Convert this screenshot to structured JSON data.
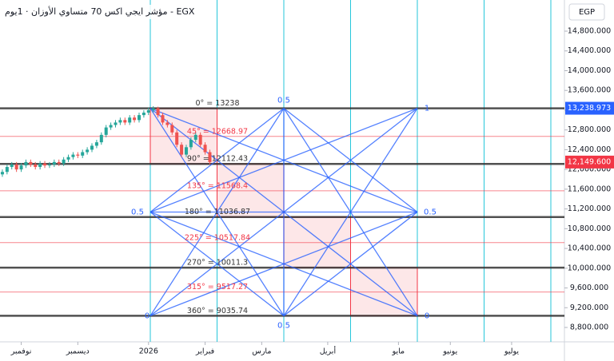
{
  "chart_data": {
    "type": "candlestick",
    "title": "مؤشر ايجي اكس 70 متساوي الأوزان · 1يوم - EGX",
    "currency": "EGP",
    "up_color": "#26a69a",
    "down_color": "#ef5350",
    "open": [
      11900,
      11950,
      12050,
      12100,
      12000,
      12080,
      12150,
      12100,
      12050,
      12120,
      12080,
      12100,
      12150,
      12120,
      12200,
      12250,
      12300,
      12280,
      12350,
      12400,
      12480,
      12550,
      12700,
      12850,
      12900,
      12950,
      13000,
      12950,
      13050,
      13000,
      13100,
      13150,
      13200,
      13238,
      13100,
      12950,
      12900,
      12750,
      12500,
      12300,
      12450,
      12600,
      12700,
      12500,
      12350
    ],
    "close": [
      11950,
      12050,
      12100,
      12000,
      12080,
      12150,
      12100,
      12050,
      12120,
      12080,
      12100,
      12150,
      12120,
      12200,
      12250,
      12300,
      12280,
      12350,
      12400,
      12480,
      12550,
      12700,
      12850,
      12900,
      12950,
      13000,
      12950,
      13050,
      13000,
      13100,
      13150,
      13200,
      13238,
      13100,
      12950,
      12900,
      12750,
      12500,
      12300,
      12450,
      12600,
      12700,
      12500,
      12350,
      12150
    ],
    "high": [
      12000,
      12100,
      12150,
      12150,
      12130,
      12200,
      12200,
      12150,
      12170,
      12170,
      12150,
      12200,
      12200,
      12250,
      12300,
      12350,
      12350,
      12400,
      12450,
      12530,
      12600,
      12750,
      12900,
      12950,
      13000,
      13050,
      13050,
      13100,
      13100,
      13150,
      13200,
      13250,
      13280,
      13270,
      13150,
      13000,
      12950,
      12800,
      12550,
      12500,
      12650,
      12750,
      12750,
      12550,
      12400
    ],
    "low": [
      11850,
      11900,
      12000,
      11950,
      11950,
      12030,
      12050,
      12000,
      12000,
      12030,
      12030,
      12050,
      12070,
      12070,
      12150,
      12200,
      12230,
      12230,
      12300,
      12350,
      12430,
      12500,
      12650,
      12800,
      12850,
      12900,
      12900,
      12900,
      12950,
      12950,
      13050,
      13100,
      13150,
      13050,
      12900,
      12850,
      12700,
      12450,
      12250,
      12250,
      12400,
      12550,
      12450,
      12300,
      12100
    ],
    "xlim": [
      -0.5,
      119.2
    ],
    "xticks": [
      {
        "value": 4,
        "label": "نوفمبر"
      },
      {
        "value": 16,
        "label": "ديسمبر"
      },
      {
        "value": 31,
        "label": "2026"
      },
      {
        "value": 43,
        "label": "فبراير"
      },
      {
        "value": 55,
        "label": "مارس"
      },
      {
        "value": 69,
        "label": "أبريل"
      },
      {
        "value": 84,
        "label": "مايو"
      },
      {
        "value": 95,
        "label": "يونيو"
      },
      {
        "value": 108,
        "label": "يوليو"
      }
    ],
    "ylim": [
      8509,
      15431
    ],
    "yticks": [
      {
        "value": 14800,
        "label": "14,800.000"
      },
      {
        "value": 14400,
        "label": "14,400.000"
      },
      {
        "value": 14000,
        "label": "14,000.000"
      },
      {
        "value": 13600,
        "label": "13,600.000"
      },
      {
        "value": 13200,
        "label": "13,200.000"
      },
      {
        "value": 12800,
        "label": "12,800.000"
      },
      {
        "value": 12400,
        "label": "12,400.000"
      },
      {
        "value": 12000,
        "label": "12,000.000"
      },
      {
        "value": 11600,
        "label": "11,600.000"
      },
      {
        "value": 11200,
        "label": "11,200.000"
      },
      {
        "value": 10800,
        "label": "10,800.000"
      },
      {
        "value": 10400,
        "label": "10,400.000"
      },
      {
        "value": 10000,
        "label": "10,000.000"
      },
      {
        "value": 9600,
        "label": "9,600.000"
      },
      {
        "value": 9200,
        "label": "9,200.000"
      },
      {
        "value": 8800,
        "label": "8,800.000"
      }
    ],
    "price_tags": [
      {
        "value": 13238.973,
        "label": "13,238.973",
        "color": "#2962ff"
      },
      {
        "value": 12149.6,
        "label": "12,149.600",
        "color": "#f23645"
      }
    ],
    "gann_levels": [
      {
        "value": 13238,
        "label": "0° = 13238",
        "color": "#333333",
        "major": true
      },
      {
        "value": 12668.97,
        "label": "45° = 12668.97",
        "color": "#f23645",
        "major": false
      },
      {
        "value": 12112.43,
        "label": "90° = 12112.43",
        "color": "#333333",
        "major": true
      },
      {
        "value": 11568.4,
        "label": "135° = 11568.4",
        "color": "#f23645",
        "major": false
      },
      {
        "value": 11036.87,
        "label": "180° = 11036.87",
        "color": "#333333",
        "major": true
      },
      {
        "value": 10517.84,
        "label": "225° = 10517.84",
        "color": "#f23645",
        "major": false
      },
      {
        "value": 10011.3,
        "label": "270° = 10011.3",
        "color": "#333333",
        "major": true
      },
      {
        "value": 9517.27,
        "label": "315° = 9517.27",
        "color": "#f23645",
        "major": false
      },
      {
        "value": 9035.74,
        "label": "360° = 9035.74",
        "color": "#333333",
        "major": true
      }
    ],
    "box_labels": {
      "top_mid": "0.5",
      "bottom_mid": "0.5",
      "left_mid": "0.5",
      "right_mid": "0.5",
      "top_right": "1",
      "bottom_left": "0",
      "bottom_right": "0"
    }
  }
}
